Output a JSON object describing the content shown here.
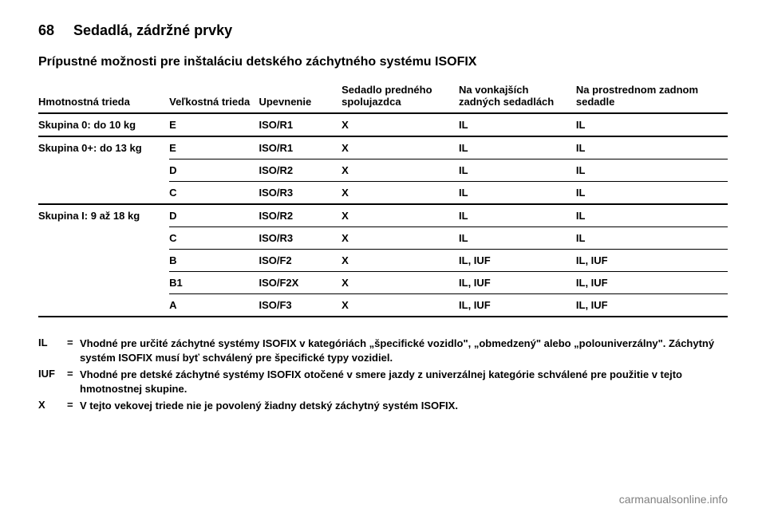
{
  "header": {
    "page_number": "68",
    "chapter_title": "Sedadlá, zádržné prvky"
  },
  "section_title": "Prípustné možnosti pre inštaláciu detského záchytného systému ISOFIX",
  "table": {
    "columns": [
      "Hmotnostná trieda",
      "Veľkostná trieda",
      "Upevnenie",
      "Sedadlo predného spolujazdca",
      "Na vonkajších zadných sedadlách",
      "Na prostrednom zadnom sedadle"
    ],
    "rows": [
      {
        "weight": "Skupina 0: do 10 kg",
        "size": "E",
        "fix": "ISO/R1",
        "pass": "X",
        "outer": "IL",
        "center": "IL",
        "group_end": true
      },
      {
        "weight": "Skupina 0+: do 13 kg",
        "size": "E",
        "fix": "ISO/R1",
        "pass": "X",
        "outer": "IL",
        "center": "IL",
        "group_end": false,
        "rowspan": 3
      },
      {
        "weight": "",
        "size": "D",
        "fix": "ISO/R2",
        "pass": "X",
        "outer": "IL",
        "center": "IL",
        "group_end": false
      },
      {
        "weight": "",
        "size": "C",
        "fix": "ISO/R3",
        "pass": "X",
        "outer": "IL",
        "center": "IL",
        "group_end": true
      },
      {
        "weight": "Skupina I: 9 až 18 kg",
        "size": "D",
        "fix": "ISO/R2",
        "pass": "X",
        "outer": "IL",
        "center": "IL",
        "group_end": false,
        "rowspan": 5
      },
      {
        "weight": "",
        "size": "C",
        "fix": "ISO/R3",
        "pass": "X",
        "outer": "IL",
        "center": "IL",
        "group_end": false
      },
      {
        "weight": "",
        "size": "B",
        "fix": "ISO/F2",
        "pass": "X",
        "outer": "IL, IUF",
        "center": "IL, IUF",
        "group_end": false
      },
      {
        "weight": "",
        "size": "B1",
        "fix": "ISO/F2X",
        "pass": "X",
        "outer": "IL, IUF",
        "center": "IL, IUF",
        "group_end": false
      },
      {
        "weight": "",
        "size": "A",
        "fix": "ISO/F3",
        "pass": "X",
        "outer": "IL, IUF",
        "center": "IL, IUF",
        "group_end": true
      }
    ]
  },
  "legend": [
    {
      "key": "IL",
      "text": "Vhodné pre určité záchytné systémy ISOFIX v kategóriách „špecifické vozidlo\", „obmedzený\" alebo „polouniverzálny\". Záchytný systém ISOFIX musí byť schválený pre špecifické typy vozidiel."
    },
    {
      "key": "IUF",
      "text": "Vhodné pre detské záchytné systémy ISOFIX otočené v smere jazdy z univerzálnej kategórie schválené pre použitie v tejto hmotnostnej skupine."
    },
    {
      "key": "X",
      "text": "V tejto vekovej triede nie je povolený žiadny detský záchytný systém ISOFIX."
    }
  ],
  "watermark": "carmanualsonline.info"
}
